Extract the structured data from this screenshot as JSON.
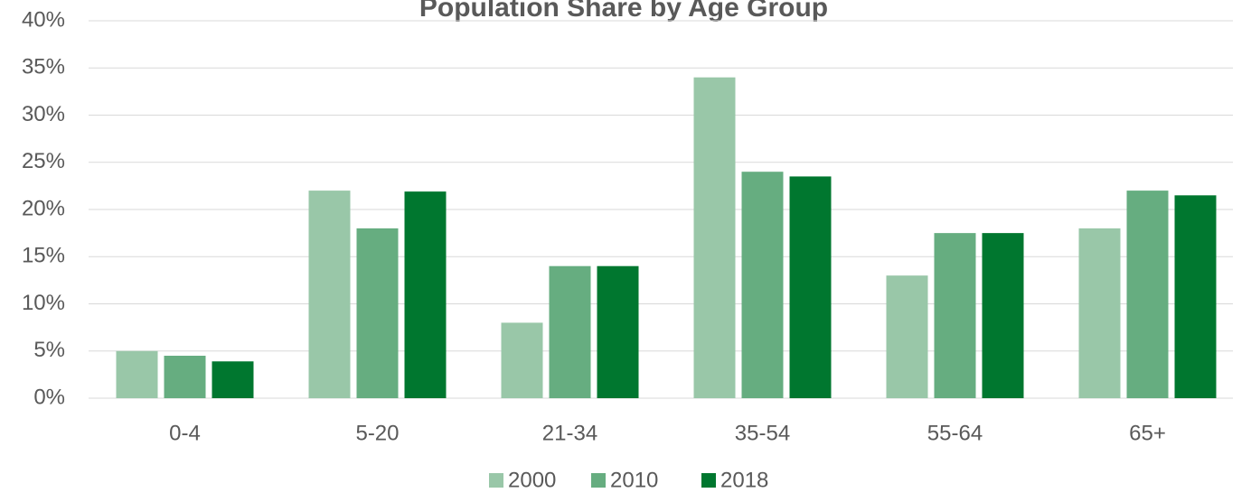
{
  "chart_data": {
    "type": "bar",
    "title": "Population Share by Age Group",
    "categories": [
      "0-4",
      "5-20",
      "21-34",
      "35-54",
      "55-64",
      "65+"
    ],
    "series": [
      {
        "name": "2000",
        "color": "#99c7a8",
        "values": [
          5,
          22,
          8,
          34,
          13,
          18
        ]
      },
      {
        "name": "2010",
        "color": "#66ad80",
        "values": [
          4.5,
          18,
          14,
          24,
          17.5,
          22
        ]
      },
      {
        "name": "2018",
        "color": "#00772f",
        "values": [
          3.9,
          21.9,
          14,
          23.5,
          17.5,
          21.5
        ]
      }
    ],
    "ylim": [
      0,
      40
    ],
    "yticks": [
      {
        "value": 0,
        "label": "0%"
      },
      {
        "value": 5,
        "label": "5%"
      },
      {
        "value": 10,
        "label": "10%"
      },
      {
        "value": 15,
        "label": "15%"
      },
      {
        "value": 20,
        "label": "20%"
      },
      {
        "value": 25,
        "label": "25%"
      },
      {
        "value": 30,
        "label": "30%"
      },
      {
        "value": 35,
        "label": "35%"
      },
      {
        "value": 40,
        "label": "40%"
      }
    ],
    "grid": true,
    "legend": "bottom"
  }
}
